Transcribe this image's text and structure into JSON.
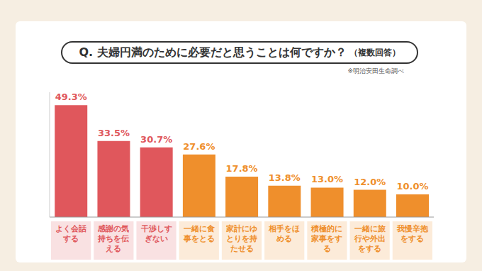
{
  "chart_data": {
    "type": "bar",
    "title": "Q. 夫婦円満のために必要だと思うことは何ですか？",
    "subtitle": "（複数回答）",
    "annotation": "※明治安田生命調べ",
    "categories": [
      "よく会話する",
      "感謝の気持ちを伝える",
      "干渉しすぎない",
      "一緒に食事をとる",
      "家計にゆとりを持たせる",
      "相手をほめる",
      "積極的に家事をする",
      "一緒に旅行や外出をする",
      "我慢辛抱をする"
    ],
    "values": [
      49.3,
      33.5,
      30.7,
      27.6,
      17.8,
      13.8,
      13.0,
      12.0,
      10.0
    ],
    "value_labels": [
      "49.3%",
      "33.5%",
      "30.7%",
      "27.6%",
      "17.8%",
      "13.8%",
      "13.0%",
      "12.0%",
      "10.0%"
    ],
    "colors": [
      "#e0575c",
      "#e0575c",
      "#e0575c",
      "#ef8f2c",
      "#ef8f2c",
      "#ef8f2c",
      "#ef8f2c",
      "#ef8f2c",
      "#ef8f2c"
    ],
    "ylim": [
      0,
      55
    ],
    "data_labels": true,
    "tick_labels": "x",
    "grid": false
  }
}
